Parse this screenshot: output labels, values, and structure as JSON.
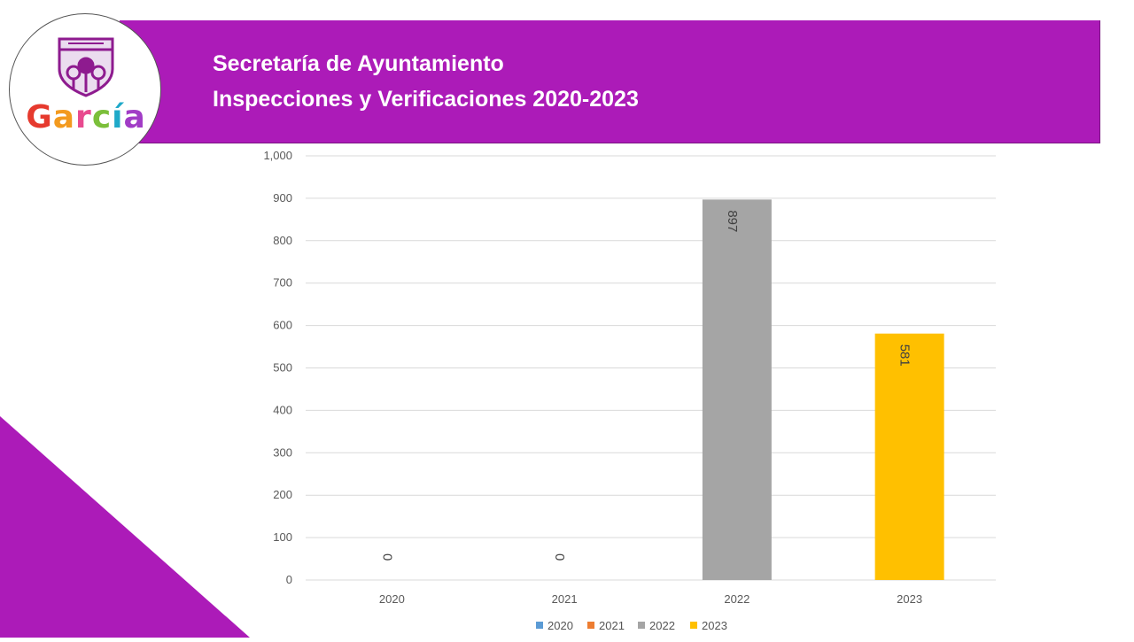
{
  "header": {
    "line1": "Secretaría de Ayuntamiento",
    "line2": "Inspecciones y Verificaciones 2020-2023"
  },
  "logo": {
    "text": "García",
    "emblem_icon": "shield-emblem-icon",
    "emblem_color": "#8e1b8f",
    "letter_colors": [
      "#e63a2e",
      "#f39a1e",
      "#e84a8f",
      "#7bbf3a",
      "#1fa9c9",
      "#a13cc6"
    ]
  },
  "colors": {
    "header_band": "#ac1bb8",
    "corner_triangle": "#ac1bb8",
    "gridline": "#d9d9d9",
    "axis_text": "#595959"
  },
  "chart_data": {
    "type": "bar",
    "title": "",
    "categories": [
      "2020",
      "2021",
      "2022",
      "2023"
    ],
    "series": [
      {
        "name": "2020",
        "color": "#5b9bd5",
        "values": [
          0,
          null,
          null,
          null
        ]
      },
      {
        "name": "2021",
        "color": "#ed7d31",
        "values": [
          null,
          0,
          null,
          null
        ]
      },
      {
        "name": "2022",
        "color": "#a5a5a5",
        "values": [
          null,
          null,
          897,
          null
        ]
      },
      {
        "name": "2023",
        "color": "#ffc000",
        "values": [
          null,
          null,
          null,
          581
        ]
      }
    ],
    "data_labels": [
      "0",
      "0",
      "897",
      "581"
    ],
    "ylim": [
      0,
      1000
    ],
    "yticks": [
      0,
      100,
      200,
      300,
      400,
      500,
      600,
      700,
      800,
      900,
      1000
    ],
    "ytick_labels": [
      "0",
      "100",
      "200",
      "300",
      "400",
      "500",
      "600",
      "700",
      "800",
      "900",
      "1,000"
    ],
    "xlabel": "",
    "ylabel": "",
    "grid": true,
    "legend": "bottom"
  }
}
